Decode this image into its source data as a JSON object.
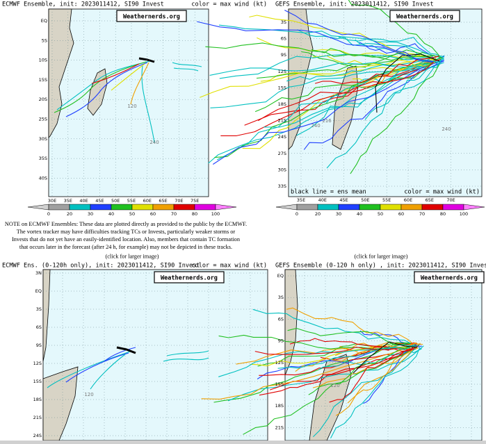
{
  "panels": [
    {
      "title": "ECMWF Ensemble, init: 2023011412, SI90 Invest",
      "title_right": "color = max wind (kt)",
      "watermark": "Weathernerds.org",
      "lat_labels": [
        "EQ",
        "5S",
        "10S",
        "15S",
        "20S",
        "25S",
        "30S",
        "35S",
        "40S"
      ],
      "lon_labels": [
        "30E",
        "35E",
        "40E",
        "45E",
        "50E",
        "55E",
        "60E",
        "65E",
        "70E",
        "75E"
      ],
      "colorbar_labels": [
        "0",
        "20",
        "30",
        "40",
        "50",
        "60",
        "70",
        "80",
        "100"
      ],
      "track_labels": [
        "120",
        "240"
      ]
    },
    {
      "title": "GEFS Ensemble, init: 2023011412, SI90 Invest",
      "watermark": "Weathernerds.org",
      "lat_labels": [
        "3S",
        "6S",
        "9S",
        "12S",
        "15S",
        "18S",
        "21S",
        "24S",
        "27S",
        "30S",
        "33S"
      ],
      "lon_labels": [
        "35E",
        "40E",
        "45E",
        "50E",
        "55E",
        "60E",
        "65E",
        "70E"
      ],
      "footer_left": "black line = ens mean",
      "footer_right": "color = max wind (kt)",
      "colorbar_labels": [
        "0",
        "20",
        "30",
        "40",
        "50",
        "60",
        "70",
        "80",
        "100"
      ],
      "track_labels": [
        "240",
        "240",
        "216"
      ]
    },
    {
      "title": "ECMWF Ens. (0-120h only), init: 2023011412, SI90 Invest",
      "title_right": "color = max wind (kt)",
      "watermark": "Weathernerds.org",
      "lat_labels": [
        "3N",
        "EQ",
        "3S",
        "6S",
        "9S",
        "12S",
        "15S",
        "18S",
        "21S",
        "24S"
      ],
      "track_labels": [
        "120"
      ]
    },
    {
      "title": "GEFS Ensemble (0-120 h only) , init: 2023011412, SI90 Invest",
      "watermark": "Weathernerds.org",
      "lat_labels": [
        "EQ",
        "3S",
        "6S",
        "9S",
        "12S",
        "15S",
        "18S",
        "21S"
      ],
      "track_labels": [
        "120"
      ]
    }
  ],
  "note": [
    "NOTE on ECMWF Ensembles: These data are plotted directly as provided to the public by the ECMWF.",
    "The vortex tracker may have difficulties tracking TCs or Invests, particularly weaker storms or",
    "Invests that do not yet have an easily-identified location. Also, members that contain TC formation",
    "that occurs later in the forecast (after 24 h, for example) may not be depicted in these tracks."
  ],
  "click_labels": [
    "(click for larger image)",
    "(click for larger image)"
  ]
}
